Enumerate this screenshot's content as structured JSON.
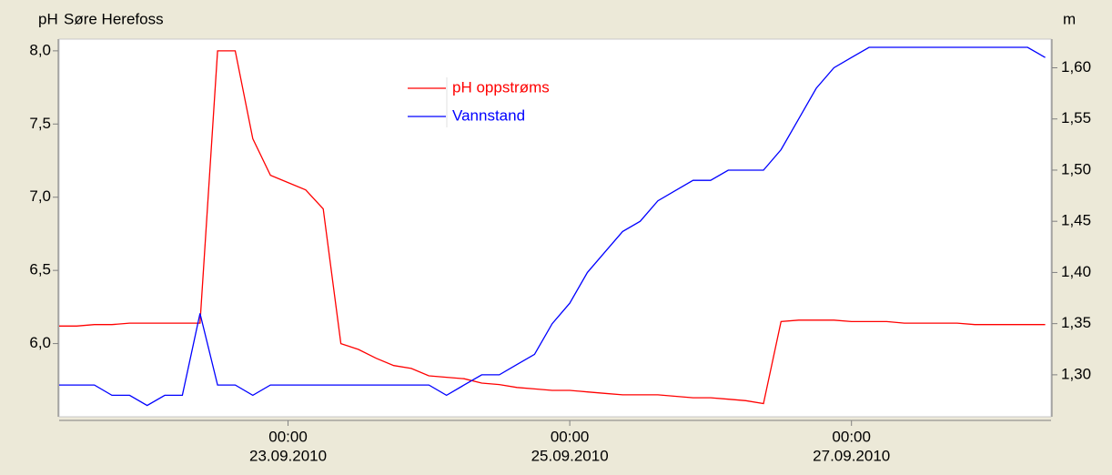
{
  "chart_data": {
    "type": "line",
    "title": "Søre Herefoss",
    "ylabel": "pH",
    "y2label": "m",
    "x": [
      "2010-09-21T09:00",
      "2010-09-21T12:00",
      "2010-09-21T15:00",
      "2010-09-21T18:00",
      "2010-09-21T21:00",
      "2010-09-22T00:00",
      "2010-09-22T03:00",
      "2010-09-22T06:00",
      "2010-09-22T09:00",
      "2010-09-22T12:00",
      "2010-09-22T15:00",
      "2010-09-22T18:00",
      "2010-09-22T21:00",
      "2010-09-23T00:00",
      "2010-09-23T03:00",
      "2010-09-23T06:00",
      "2010-09-23T09:00",
      "2010-09-23T12:00",
      "2010-09-23T15:00",
      "2010-09-23T18:00",
      "2010-09-23T21:00",
      "2010-09-24T00:00",
      "2010-09-24T03:00",
      "2010-09-24T06:00",
      "2010-09-24T09:00",
      "2010-09-24T12:00",
      "2010-09-24T15:00",
      "2010-09-24T18:00",
      "2010-09-24T21:00",
      "2010-09-25T00:00",
      "2010-09-25T03:00",
      "2010-09-25T06:00",
      "2010-09-25T09:00",
      "2010-09-25T12:00",
      "2010-09-25T15:00",
      "2010-09-25T18:00",
      "2010-09-25T21:00",
      "2010-09-26T00:00",
      "2010-09-26T03:00",
      "2010-09-26T06:00",
      "2010-09-26T09:00",
      "2010-09-26T12:00",
      "2010-09-26T15:00",
      "2010-09-26T18:00",
      "2010-09-26T21:00",
      "2010-09-27T00:00",
      "2010-09-27T03:00",
      "2010-09-27T06:00",
      "2010-09-27T09:00",
      "2010-09-27T12:00",
      "2010-09-27T15:00",
      "2010-09-27T18:00",
      "2010-09-27T21:00",
      "2010-09-28T00:00",
      "2010-09-28T03:00",
      "2010-09-28T06:00",
      "2010-09-28T09:00"
    ],
    "series": [
      {
        "name": "pH oppstrøms",
        "color": "#ff0000",
        "axis": "y",
        "values": [
          6.12,
          6.12,
          6.13,
          6.13,
          6.14,
          6.14,
          6.14,
          6.14,
          6.14,
          8.0,
          8.0,
          7.4,
          7.15,
          7.1,
          7.05,
          6.92,
          6.0,
          5.96,
          5.9,
          5.85,
          5.83,
          5.78,
          5.77,
          5.76,
          5.73,
          5.72,
          5.7,
          5.69,
          5.68,
          5.68,
          5.67,
          5.66,
          5.65,
          5.65,
          5.65,
          5.64,
          5.63,
          5.63,
          5.62,
          5.61,
          5.59,
          6.15,
          6.16,
          6.16,
          6.16,
          6.15,
          6.15,
          6.15,
          6.14,
          6.14,
          6.14,
          6.14,
          6.13,
          6.13,
          6.13,
          6.13,
          6.13
        ]
      },
      {
        "name": "Vannstand",
        "color": "#0000ff",
        "axis": "y2",
        "values": [
          1.29,
          1.29,
          1.29,
          1.28,
          1.28,
          1.27,
          1.28,
          1.28,
          1.36,
          1.29,
          1.29,
          1.28,
          1.29,
          1.29,
          1.29,
          1.29,
          1.29,
          1.29,
          1.29,
          1.29,
          1.29,
          1.29,
          1.28,
          1.29,
          1.3,
          1.3,
          1.31,
          1.32,
          1.35,
          1.37,
          1.4,
          1.42,
          1.44,
          1.45,
          1.47,
          1.48,
          1.49,
          1.49,
          1.5,
          1.5,
          1.5,
          1.52,
          1.55,
          1.58,
          1.6,
          1.61,
          1.62,
          1.62,
          1.62,
          1.62,
          1.62,
          1.62,
          1.62,
          1.62,
          1.62,
          1.62,
          1.61
        ]
      }
    ],
    "xlim": [
      "2010-09-21T09:00",
      "2010-09-28T10:00"
    ],
    "xticks": [
      {
        "value": "2010-09-23T00:00",
        "label": [
          "00:00",
          "23.09.2010"
        ]
      },
      {
        "value": "2010-09-25T00:00",
        "label": [
          "00:00",
          "25.09.2010"
        ]
      },
      {
        "value": "2010-09-27T00:00",
        "label": [
          "00:00",
          "27.09.2010"
        ]
      }
    ],
    "ylim": [
      5.5,
      8.08
    ],
    "yticks": [
      {
        "value": 6,
        "label": "6,0"
      },
      {
        "value": 6.5,
        "label": "6,5"
      },
      {
        "value": 7,
        "label": "7,0"
      },
      {
        "value": 7.5,
        "label": "7,5"
      },
      {
        "value": 8,
        "label": "8,0"
      }
    ],
    "y2lim": [
      1.259,
      1.628
    ],
    "y2ticks": [
      {
        "value": 1.3,
        "label": "1,30"
      },
      {
        "value": 1.35,
        "label": "1,35"
      },
      {
        "value": 1.4,
        "label": "1,40"
      },
      {
        "value": 1.45,
        "label": "1,45"
      },
      {
        "value": 1.5,
        "label": "1,50"
      },
      {
        "value": 1.55,
        "label": "1,55"
      },
      {
        "value": 1.6,
        "label": "1,60"
      }
    ],
    "grid": false,
    "legend": "top"
  }
}
